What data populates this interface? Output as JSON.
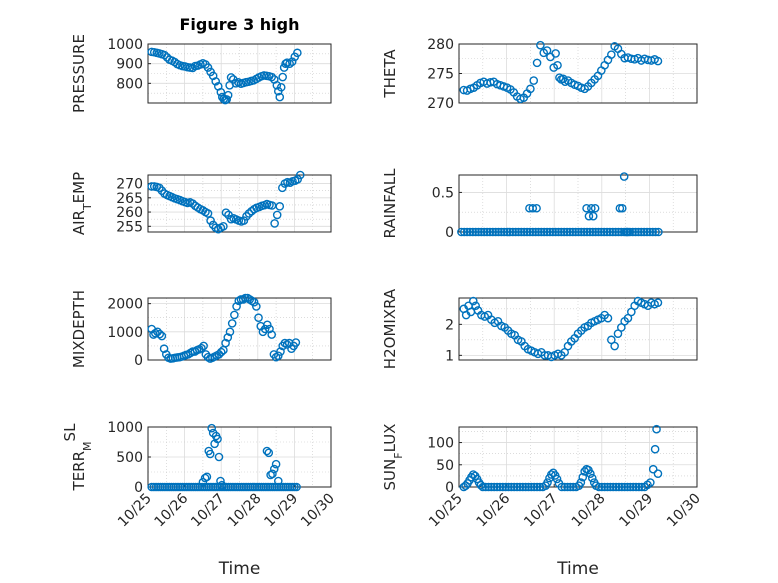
{
  "figure": {
    "title": "Figure 3 high",
    "marker_color": "#0072bd"
  },
  "chart_data": [
    {
      "type": "scatter",
      "id": "pressure",
      "title": "Figure 3 high",
      "ylabel_parts": [
        {
          "t": "PRESSURE"
        }
      ],
      "ylim": [
        700,
        1000
      ],
      "yticks": [
        800,
        900,
        1000
      ],
      "yminor": [
        750,
        850,
        950
      ],
      "xlim": [
        0,
        5
      ],
      "show_xticks": false,
      "x": [
        0.1,
        0.17,
        0.24,
        0.31,
        0.38,
        0.45,
        0.52,
        0.59,
        0.66,
        0.73,
        0.8,
        0.87,
        0.94,
        1.01,
        1.08,
        1.15,
        1.22,
        1.29,
        1.36,
        1.43,
        1.5,
        1.57,
        1.64,
        1.71,
        1.78,
        1.85,
        1.92,
        1.99,
        2.03,
        2.07,
        2.11,
        2.15,
        2.19,
        2.23,
        2.27,
        2.33,
        2.4,
        2.47,
        2.54,
        2.61,
        2.68,
        2.75,
        2.82,
        2.89,
        2.96,
        3.03,
        3.1,
        3.17,
        3.24,
        3.31,
        3.38,
        3.45,
        3.52,
        3.56,
        3.6,
        3.64,
        3.68,
        3.72,
        3.76,
        3.8,
        3.87,
        3.94,
        4.01,
        4.08
      ],
      "y": [
        960,
        958,
        955,
        952,
        948,
        944,
        932,
        920,
        915,
        908,
        898,
        892,
        888,
        886,
        882,
        880,
        878,
        888,
        890,
        896,
        902,
        896,
        880,
        858,
        838,
        810,
        785,
        755,
        730,
        720,
        715,
        718,
        740,
        790,
        830,
        820,
        800,
        805,
        798,
        802,
        806,
        808,
        812,
        815,
        822,
        830,
        836,
        840,
        838,
        836,
        832,
        820,
        790,
        760,
        730,
        780,
        832,
        880,
        900,
        905,
        900,
        910,
        935,
        955
      ]
    },
    {
      "type": "scatter",
      "id": "theta",
      "ylabel_parts": [
        {
          "t": "THETA"
        }
      ],
      "ylim": [
        270,
        280
      ],
      "yticks": [
        270,
        275,
        280
      ],
      "yminor": [
        272.5,
        277.5
      ],
      "xlim": [
        0,
        5
      ],
      "show_xticks": false,
      "x": [
        0.1,
        0.17,
        0.24,
        0.31,
        0.38,
        0.45,
        0.52,
        0.59,
        0.66,
        0.73,
        0.8,
        0.87,
        0.94,
        1.01,
        1.08,
        1.15,
        1.22,
        1.29,
        1.36,
        1.43,
        1.5,
        1.57,
        1.64,
        1.71,
        1.78,
        1.85,
        1.92,
        1.99,
        2.03,
        2.07,
        2.11,
        2.15,
        2.19,
        2.23,
        2.29,
        2.36,
        2.43,
        2.5,
        2.57,
        2.64,
        2.71,
        2.78,
        2.85,
        2.92,
        2.99,
        3.06,
        3.13,
        3.2,
        3.27,
        3.34,
        3.41,
        3.48,
        3.55,
        3.62,
        3.69,
        3.76,
        3.83,
        3.9,
        3.97,
        4.04,
        4.11,
        4.18
      ],
      "y": [
        272.2,
        272.1,
        272.4,
        272.6,
        273.0,
        273.4,
        273.6,
        273.3,
        273.5,
        273.6,
        273.2,
        273.0,
        272.8,
        272.6,
        272.3,
        271.8,
        271.1,
        270.7,
        270.9,
        271.6,
        272.4,
        273.8,
        276.8,
        279.8,
        278.5,
        278.9,
        277.8,
        276.0,
        278.4,
        276.4,
        274.3,
        274.0,
        274.1,
        273.6,
        273.8,
        273.4,
        273.1,
        272.9,
        272.6,
        272.4,
        272.8,
        273.4,
        274.0,
        274.6,
        275.5,
        276.4,
        277.3,
        278.2,
        279.6,
        279.2,
        278.3,
        277.6,
        277.7,
        277.5,
        277.4,
        277.6,
        277.2,
        277.5,
        277.3,
        277.2,
        277.4,
        277.1
      ]
    },
    {
      "type": "scatter",
      "id": "air-temp",
      "ylabel_parts": [
        {
          "t": "AIR"
        },
        {
          "t": "T",
          "sub": true
        },
        {
          "t": "EMP"
        }
      ],
      "ylim": [
        253,
        273
      ],
      "yticks": [
        255,
        260,
        265,
        270
      ],
      "yminor": [
        257.5,
        262.5,
        267.5
      ],
      "xlim": [
        0,
        5
      ],
      "show_xticks": false,
      "x": [
        0.1,
        0.17,
        0.24,
        0.31,
        0.38,
        0.45,
        0.52,
        0.59,
        0.66,
        0.73,
        0.8,
        0.87,
        0.94,
        1.01,
        1.08,
        1.15,
        1.22,
        1.29,
        1.36,
        1.43,
        1.5,
        1.57,
        1.64,
        1.71,
        1.78,
        1.85,
        1.92,
        1.99,
        2.06,
        2.13,
        2.2,
        2.27,
        2.34,
        2.41,
        2.48,
        2.55,
        2.62,
        2.69,
        2.76,
        2.83,
        2.9,
        2.97,
        3.04,
        3.11,
        3.18,
        3.25,
        3.32,
        3.39,
        3.46,
        3.53,
        3.6,
        3.67,
        3.74,
        3.81,
        3.88,
        3.95,
        4.02,
        4.09,
        4.16
      ],
      "y": [
        269,
        269,
        268.8,
        268.5,
        267.5,
        266.5,
        266,
        265.6,
        265.2,
        264.8,
        264.5,
        264.2,
        263.8,
        263.5,
        263.2,
        263.4,
        263,
        262.2,
        261.6,
        261,
        260.6,
        260,
        259.5,
        257,
        255.5,
        254.5,
        254,
        254.5,
        255,
        259.8,
        259,
        257.5,
        257.8,
        257.4,
        257,
        256.7,
        257,
        258.5,
        259.5,
        260.3,
        261,
        261.5,
        261.8,
        262.2,
        262.4,
        262.8,
        262.5,
        262.3,
        256,
        259,
        262,
        268.5,
        270,
        270.5,
        270.3,
        270.8,
        271,
        271.5,
        273
      ]
    },
    {
      "type": "scatter",
      "id": "rainfall",
      "ylabel_parts": [
        {
          "t": "RAINFALL"
        }
      ],
      "ylim": [
        0,
        0.72
      ],
      "yticks": [
        0,
        0.5
      ],
      "yminor": [
        0.25
      ],
      "xlim": [
        0,
        5
      ],
      "show_xticks": false,
      "x": [
        0.05,
        0.11,
        0.17,
        0.23,
        0.29,
        0.35,
        0.41,
        0.47,
        0.53,
        0.59,
        0.65,
        0.71,
        0.77,
        0.83,
        0.89,
        0.95,
        1.01,
        1.07,
        1.13,
        1.19,
        1.25,
        1.31,
        1.37,
        1.43,
        1.49,
        1.55,
        1.61,
        1.67,
        1.73,
        1.79,
        1.85,
        1.91,
        1.97,
        2.03,
        2.09,
        2.15,
        2.21,
        2.27,
        2.33,
        2.39,
        2.45,
        2.51,
        2.57,
        2.63,
        2.69,
        2.75,
        2.81,
        2.87,
        2.93,
        2.99,
        3.05,
        3.11,
        3.17,
        3.23,
        3.29,
        3.35,
        3.41,
        3.47,
        3.53,
        3.59,
        3.65,
        3.71,
        3.77,
        3.83,
        3.89,
        3.95,
        4.01,
        4.07,
        4.13,
        4.19,
        1.48,
        1.55,
        1.63,
        2.68,
        2.73,
        2.78,
        2.82,
        2.86,
        3.38,
        3.43,
        3.47,
        3.51,
        3.55
      ],
      "y": [
        0,
        0,
        0,
        0,
        0,
        0,
        0,
        0,
        0,
        0,
        0,
        0,
        0,
        0,
        0,
        0,
        0,
        0,
        0,
        0,
        0,
        0,
        0,
        0,
        0,
        0,
        0,
        0,
        0,
        0,
        0,
        0,
        0,
        0,
        0,
        0,
        0,
        0,
        0,
        0,
        0,
        0,
        0,
        0,
        0,
        0,
        0,
        0,
        0,
        0,
        0,
        0,
        0,
        0,
        0,
        0,
        0,
        0,
        0,
        0,
        0,
        0,
        0,
        0,
        0,
        0,
        0,
        0,
        0,
        0,
        0.3,
        0.3,
        0.3,
        0.3,
        0.2,
        0.3,
        0.2,
        0.3,
        0.3,
        0.3,
        0.7,
        0.0,
        0.0
      ]
    },
    {
      "type": "scatter",
      "id": "mixdepth",
      "ylabel_parts": [
        {
          "t": "MIXDEPTH"
        }
      ],
      "ylim": [
        0,
        2200
      ],
      "yticks": [
        0,
        1000,
        2000
      ],
      "yminor": [
        500,
        1500
      ],
      "xlim": [
        0,
        5
      ],
      "show_xticks": false,
      "x": [
        0.1,
        0.15,
        0.2,
        0.26,
        0.32,
        0.38,
        0.44,
        0.5,
        0.56,
        0.62,
        0.68,
        0.74,
        0.8,
        0.86,
        0.92,
        0.98,
        1.04,
        1.1,
        1.16,
        1.22,
        1.28,
        1.34,
        1.4,
        1.46,
        1.52,
        1.58,
        1.64,
        1.7,
        1.76,
        1.82,
        1.88,
        1.94,
        2,
        2.06,
        2.12,
        2.18,
        2.24,
        2.3,
        2.36,
        2.42,
        2.48,
        2.54,
        2.6,
        2.66,
        2.72,
        2.78,
        2.84,
        2.9,
        2.96,
        3.02,
        3.08,
        3.14,
        3.2,
        3.26,
        3.32,
        3.38,
        3.44,
        3.5,
        3.56,
        3.62,
        3.68,
        3.74,
        3.8,
        3.86,
        3.92,
        3.98,
        4.04
      ],
      "y": [
        1100,
        900,
        950,
        1000,
        920,
        850,
        400,
        200,
        80,
        50,
        60,
        80,
        90,
        100,
        120,
        150,
        180,
        200,
        250,
        300,
        300,
        350,
        380,
        420,
        500,
        200,
        100,
        50,
        80,
        120,
        160,
        200,
        280,
        350,
        600,
        800,
        1000,
        1300,
        1600,
        1900,
        2100,
        2150,
        2150,
        2200,
        2200,
        2150,
        2100,
        2050,
        1900,
        1500,
        1200,
        1000,
        1100,
        1250,
        1100,
        900,
        200,
        100,
        150,
        300,
        500,
        600,
        550,
        600,
        400,
        500,
        620
      ]
    },
    {
      "type": "scatter",
      "id": "h2omixra",
      "ylabel_parts": [
        {
          "t": "H2OMIXRA"
        }
      ],
      "ylim": [
        0.85,
        2.85
      ],
      "yticks": [
        1,
        2
      ],
      "yminor": [
        1.5,
        2.5
      ],
      "xlim": [
        0,
        5
      ],
      "show_xticks": false,
      "x": [
        0.1,
        0.15,
        0.2,
        0.25,
        0.3,
        0.35,
        0.4,
        0.47,
        0.54,
        0.61,
        0.68,
        0.75,
        0.82,
        0.89,
        0.96,
        1.03,
        1.1,
        1.17,
        1.24,
        1.31,
        1.38,
        1.45,
        1.52,
        1.59,
        1.66,
        1.73,
        1.8,
        1.87,
        1.94,
        2.01,
        2.08,
        2.15,
        2.22,
        2.29,
        2.36,
        2.43,
        2.5,
        2.57,
        2.64,
        2.71,
        2.78,
        2.85,
        2.92,
        2.99,
        3.06,
        3.13,
        3.2,
        3.27,
        3.34,
        3.41,
        3.48,
        3.55,
        3.62,
        3.69,
        3.76,
        3.83,
        3.9,
        3.97,
        4.04,
        4.11,
        4.18
      ],
      "y": [
        2.5,
        2.3,
        2.6,
        2.4,
        2.75,
        2.6,
        2.45,
        2.3,
        2.25,
        2.3,
        2.15,
        2.05,
        2.1,
        1.95,
        1.9,
        1.8,
        1.7,
        1.65,
        1.5,
        1.45,
        1.3,
        1.2,
        1.15,
        1.1,
        1.05,
        1.1,
        1.0,
        1.0,
        0.95,
        1.0,
        1.05,
        1.0,
        1.1,
        1.3,
        1.45,
        1.55,
        1.7,
        1.8,
        1.9,
        1.95,
        2.05,
        2.1,
        2.15,
        2.2,
        2.3,
        2.2,
        1.5,
        1.3,
        1.7,
        1.9,
        2.1,
        2.2,
        2.4,
        2.6,
        2.75,
        2.7,
        2.65,
        2.6,
        2.7,
        2.65,
        2.7
      ]
    },
    {
      "type": "scatter",
      "id": "terrain-msl",
      "ylabel_parts": [
        {
          "t": "TERR"
        },
        {
          "t": "M",
          "sub": true
        },
        {
          "t": "SL",
          "sup": true
        }
      ],
      "ylim": [
        0,
        1000
      ],
      "yticks": [
        0,
        500,
        1000
      ],
      "yminor": [
        250,
        750
      ],
      "xlim": [
        0,
        5
      ],
      "show_xticks": true,
      "xticks": [
        0,
        1,
        2,
        3,
        4,
        5
      ],
      "xticklabels": [
        "10/25",
        "10/26",
        "10/27",
        "10/28",
        "10/29",
        "10/30"
      ],
      "xlabel": "Time",
      "x": [
        0.1,
        0.16,
        0.22,
        0.28,
        0.34,
        0.4,
        0.46,
        0.52,
        0.58,
        0.64,
        0.7,
        0.76,
        0.82,
        0.88,
        0.94,
        1.0,
        1.06,
        1.12,
        1.18,
        1.24,
        1.3,
        1.36,
        1.42,
        1.48,
        1.54,
        1.6,
        1.66,
        1.72,
        1.78,
        1.84,
        1.9,
        1.96,
        2.02,
        2.08,
        2.14,
        2.2,
        2.26,
        2.32,
        2.38,
        2.44,
        2.5,
        2.56,
        2.62,
        2.68,
        2.74,
        2.8,
        2.86,
        2.92,
        2.98,
        3.04,
        3.1,
        3.16,
        3.22,
        3.28,
        3.34,
        3.4,
        3.46,
        3.52,
        3.58,
        3.64,
        3.7,
        3.76,
        3.82,
        3.88,
        3.94,
        4.0,
        4.06,
        1.5,
        1.56,
        1.61,
        1.66,
        1.7,
        1.74,
        1.78,
        1.82,
        1.86,
        1.9,
        1.94,
        1.98,
        2.02,
        3.25,
        3.3,
        3.35,
        3.4,
        3.45,
        3.5,
        3.56
      ],
      "y": [
        0,
        0,
        0,
        0,
        0,
        0,
        0,
        0,
        0,
        0,
        0,
        0,
        0,
        0,
        0,
        0,
        0,
        0,
        0,
        0,
        0,
        0,
        0,
        0,
        0,
        0,
        0,
        0,
        0,
        0,
        0,
        0,
        0,
        0,
        0,
        0,
        0,
        0,
        0,
        0,
        0,
        0,
        0,
        0,
        0,
        0,
        0,
        0,
        0,
        0,
        0,
        0,
        0,
        0,
        0,
        0,
        0,
        0,
        0,
        0,
        0,
        0,
        0,
        0,
        0,
        0,
        0,
        80,
        150,
        170,
        600,
        550,
        980,
        900,
        720,
        850,
        800,
        500,
        100,
        30,
        600,
        570,
        200,
        220,
        300,
        380,
        100
      ]
    },
    {
      "type": "scatter",
      "id": "sun-flux",
      "ylabel_parts": [
        {
          "t": "SUN"
        },
        {
          "t": "F",
          "sub": true
        },
        {
          "t": "LUX"
        }
      ],
      "ylim": [
        0,
        135
      ],
      "yticks": [
        0,
        50,
        100
      ],
      "yminor": [
        25,
        75,
        125
      ],
      "xlim": [
        0,
        5
      ],
      "show_xticks": true,
      "xticks": [
        0,
        1,
        2,
        3,
        4,
        5
      ],
      "xticklabels": [
        "10/25",
        "10/26",
        "10/27",
        "10/28",
        "10/29",
        "10/30"
      ],
      "xlabel": "Time",
      "x": [
        0.1,
        0.14,
        0.18,
        0.22,
        0.26,
        0.3,
        0.34,
        0.38,
        0.42,
        0.46,
        0.5,
        0.56,
        0.62,
        0.68,
        0.74,
        0.8,
        0.86,
        0.92,
        0.98,
        1.04,
        1.1,
        1.16,
        1.22,
        1.28,
        1.34,
        1.4,
        1.46,
        1.52,
        1.58,
        1.64,
        1.7,
        1.76,
        1.82,
        1.86,
        1.9,
        1.94,
        1.98,
        2.02,
        2.06,
        2.1,
        2.16,
        2.22,
        2.28,
        2.34,
        2.4,
        2.46,
        2.52,
        2.56,
        2.6,
        2.64,
        2.68,
        2.72,
        2.76,
        2.8,
        2.84,
        2.88,
        2.94,
        3.0,
        3.06,
        3.12,
        3.18,
        3.24,
        3.3,
        3.36,
        3.42,
        3.48,
        3.54,
        3.6,
        3.66,
        3.72,
        3.78,
        3.84,
        3.9,
        3.96,
        4.02,
        4.08,
        4.12,
        4.15,
        4.18
      ],
      "y": [
        0,
        3,
        8,
        15,
        22,
        28,
        25,
        18,
        10,
        4,
        0,
        0,
        0,
        0,
        0,
        0,
        0,
        0,
        0,
        0,
        0,
        0,
        0,
        0,
        0,
        0,
        0,
        0,
        0,
        0,
        0,
        0,
        3,
        10,
        20,
        28,
        32,
        26,
        18,
        8,
        0,
        0,
        0,
        0,
        0,
        0,
        3,
        10,
        22,
        35,
        40,
        38,
        30,
        20,
        10,
        3,
        0,
        0,
        0,
        0,
        0,
        0,
        0,
        0,
        0,
        0,
        0,
        0,
        0,
        0,
        0,
        0,
        0,
        5,
        10,
        40,
        85,
        130,
        30
      ]
    }
  ]
}
